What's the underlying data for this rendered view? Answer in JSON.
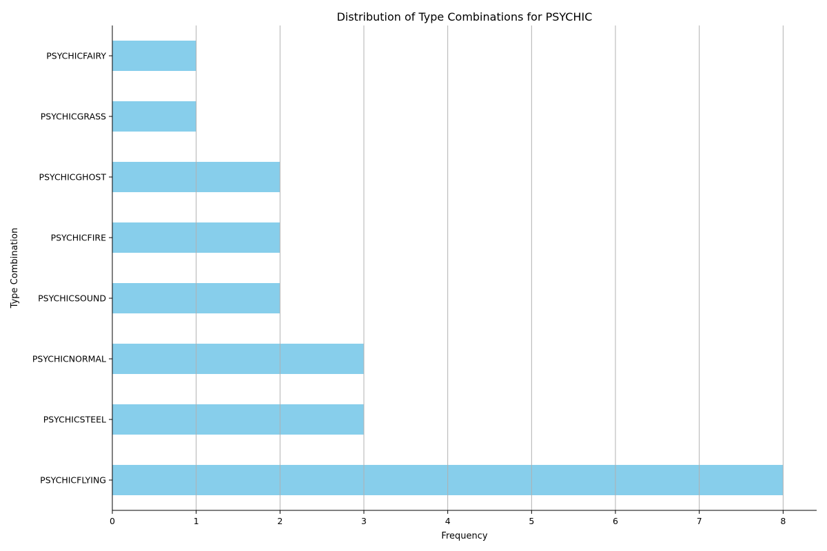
{
  "chart_data": {
    "type": "bar",
    "orientation": "horizontal",
    "title": "Distribution of Type Combinations for PSYCHIC",
    "xlabel": "Frequency",
    "ylabel": "Type Combination",
    "categories": [
      "PSYCHICFLYING",
      "PSYCHICSTEEL",
      "PSYCHICNORMAL",
      "PSYCHICSOUND",
      "PSYCHICFIRE",
      "PSYCHICGHOST",
      "PSYCHICGRASS",
      "PSYCHICFAIRY"
    ],
    "values": [
      8,
      3,
      3,
      2,
      2,
      2,
      1,
      1
    ],
    "xlim": [
      0,
      8.4
    ],
    "xticks": [
      0,
      1,
      2,
      3,
      4,
      5,
      6,
      7,
      8
    ],
    "grid": "vertical",
    "bar_color": "#87ceeb",
    "grid_color": "#b0b0b0",
    "category_order": "bottom-to-top"
  }
}
